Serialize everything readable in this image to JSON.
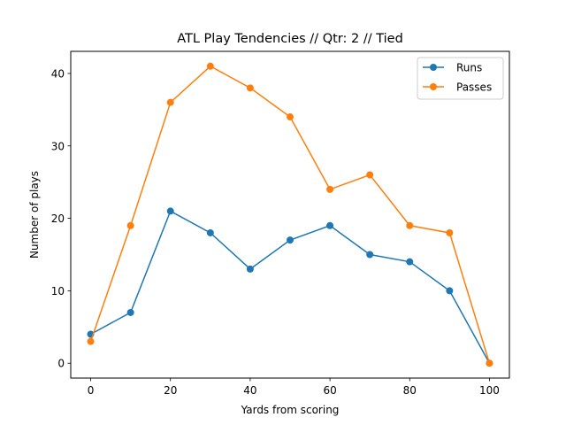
{
  "chart_data": {
    "type": "line",
    "title": "ATL Play Tendencies // Qtr: 2 // Tied",
    "xlabel": "Yards from scoring",
    "ylabel": "Number of plays",
    "x": [
      0,
      10,
      20,
      30,
      40,
      50,
      60,
      70,
      80,
      90,
      100
    ],
    "xlim": [
      -5,
      105
    ],
    "ylim": [
      -2.05,
      43.05
    ],
    "xticks": [
      0,
      20,
      40,
      60,
      80,
      100
    ],
    "yticks": [
      0,
      10,
      20,
      30,
      40
    ],
    "grid": false,
    "legend_position": "top-right",
    "series": [
      {
        "name": "Runs",
        "color": "#1f77b4",
        "values": [
          4,
          7,
          21,
          18,
          13,
          17,
          19,
          15,
          14,
          10,
          0
        ]
      },
      {
        "name": "Passes",
        "color": "#ff7f0e",
        "values": [
          3,
          19,
          36,
          41,
          38,
          34,
          24,
          26,
          19,
          18,
          0
        ]
      }
    ]
  }
}
